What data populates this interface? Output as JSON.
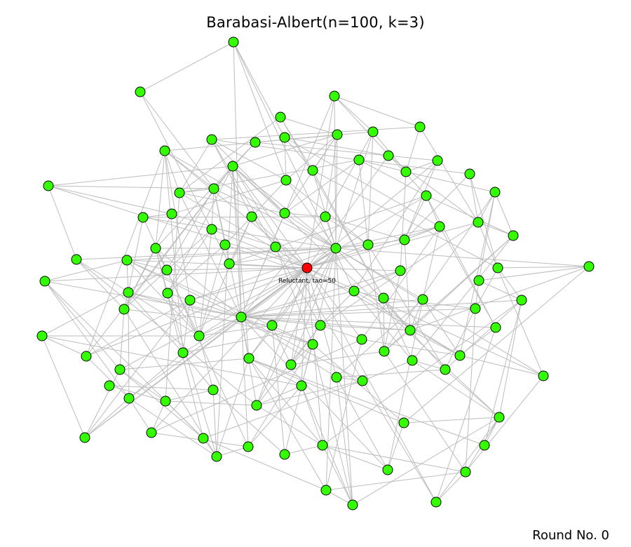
{
  "title": "Barabasi-Albert(n=100, k=3)",
  "round_label": "Round No. 0",
  "colors": {
    "normal_node": "#33ff00",
    "special_node": "#ff0000",
    "edge": "#bdbdbd",
    "node_outline": "#000000"
  },
  "special_node_label": "Reluctant, tao=50"
}
